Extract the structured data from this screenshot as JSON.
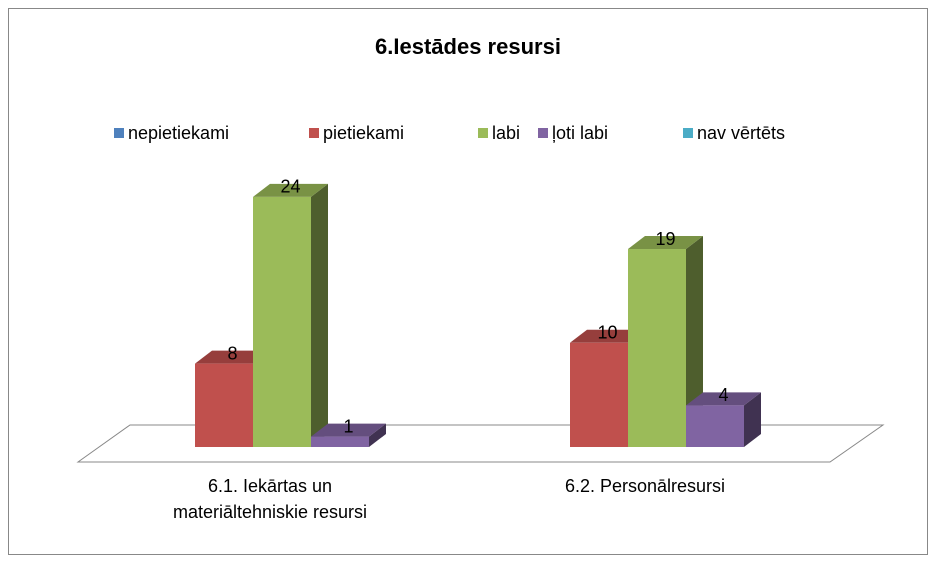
{
  "chart_data": {
    "type": "bar3d",
    "title": "6.Iestādes resursi",
    "categories": [
      "6.1. Iekārtas un materiāltehniskie resursi",
      "6.2. Personālresursi"
    ],
    "series": [
      {
        "name": "nepietiekami",
        "color": "#4f81bd",
        "values": [
          null,
          null
        ]
      },
      {
        "name": "pietiekami",
        "color": "#c0504d",
        "values": [
          8,
          10
        ]
      },
      {
        "name": "labi",
        "color": "#9bbb59",
        "values": [
          24,
          19
        ]
      },
      {
        "name": "ļoti labi",
        "color": "#8064a2",
        "values": [
          1,
          4
        ]
      },
      {
        "name": "nav vērtēts",
        "color": "#4bacc6",
        "values": [
          null,
          null
        ]
      }
    ],
    "legend": "top"
  }
}
